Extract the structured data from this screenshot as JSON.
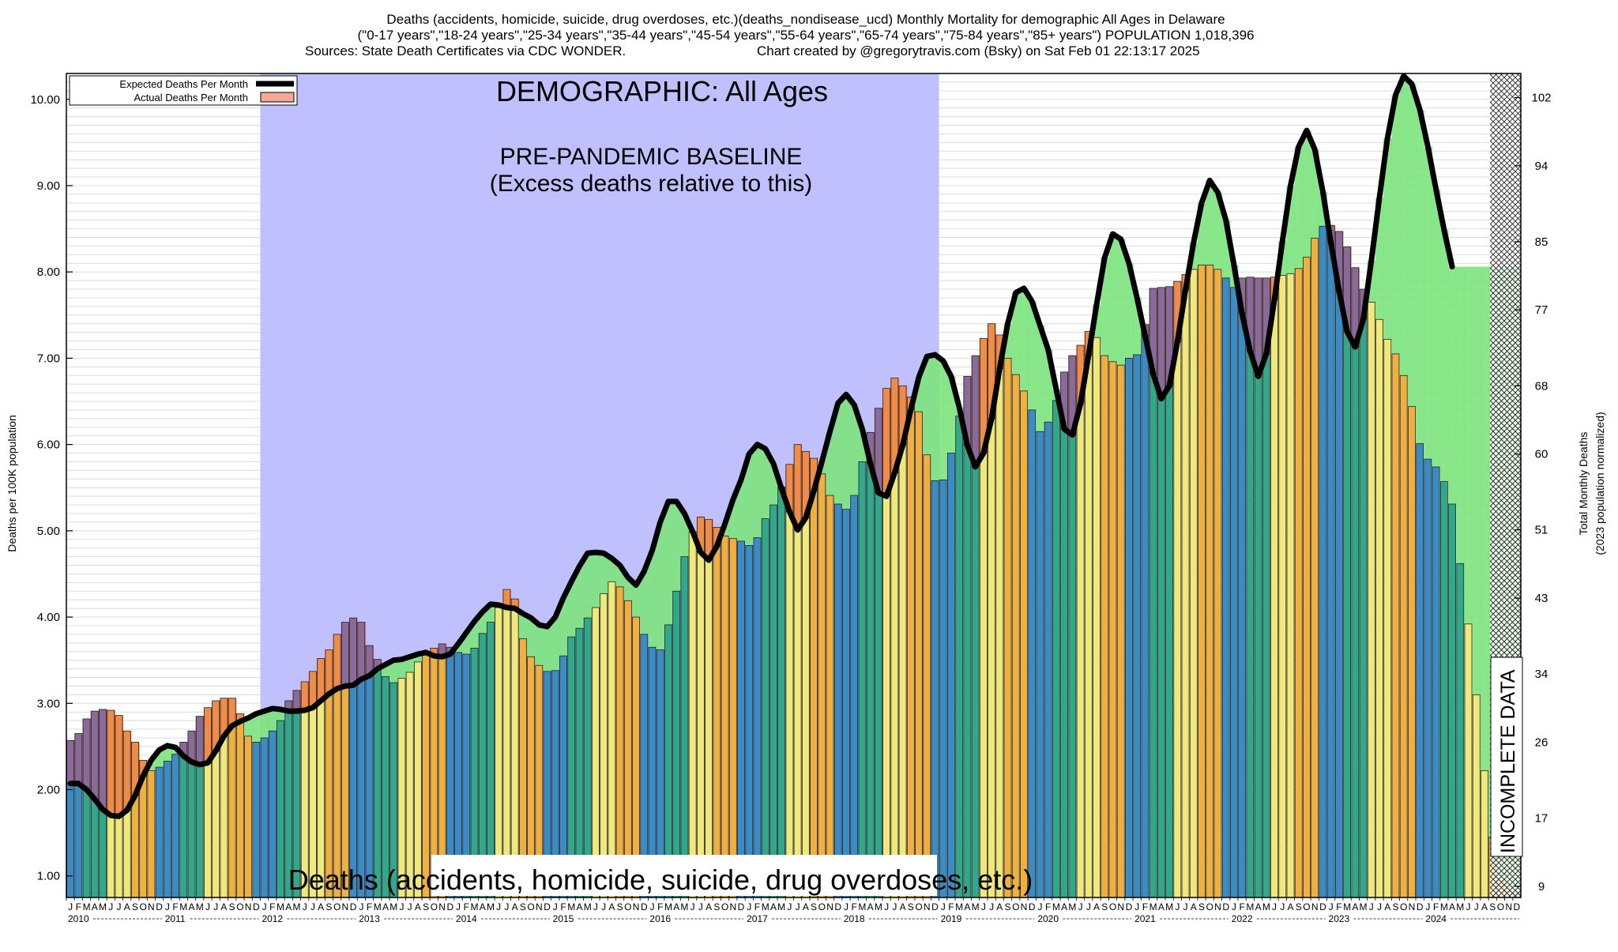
{
  "chart_data": {
    "type": "bar",
    "title_lines": [
      "Deaths (accidents, homicide, suicide, drug overdoses, etc.)(deaths_nondisease_ucd) Monthly Mortality for demographic All Ages in Delaware",
      "(\"0-17 years\",\"18-24 years\",\"25-34 years\",\"35-44 years\",\"45-54 years\",\"55-64 years\",\"65-74 years\",\"75-84 years\",\"85+ years\") POPULATION 1,018,396",
      "Sources: State Death Certificates via CDC WONDER.",
      "Chart created by @gregorytravis.com (Bsky) on Sat Feb 01 22:13:17 2025"
    ],
    "demographic_label": "DEMOGRAPHIC: All Ages",
    "baseline_label": "PRE-PANDEMIC BASELINE",
    "baseline_sublabel": "(Excess deaths relative to this)",
    "bottom_label": "Deaths (accidents, homicide, suicide, drug overdoses, etc.)",
    "incomplete_label": "INCOMPLETE DATA",
    "legend": [
      {
        "label": "Expected Deaths Per Month",
        "color": "#000000",
        "style": "line"
      },
      {
        "label": "Actual Deaths Per Month",
        "color": "#f4a896",
        "style": "box"
      }
    ],
    "ylabel_left": "Deaths per 100K population",
    "ylabel_right": [
      "Total Monthly Deaths",
      "(2023 population normalized)"
    ],
    "ylim": [
      0.75,
      10.3
    ],
    "yticks_left": [
      "1.00",
      "2.00",
      "3.00",
      "4.00",
      "5.00",
      "6.00",
      "7.00",
      "8.00",
      "9.00",
      "10.00"
    ],
    "yticks_right": [
      {
        "label": "9",
        "value": 0.88
      },
      {
        "label": "17",
        "value": 1.67
      },
      {
        "label": "26",
        "value": 2.55
      },
      {
        "label": "34",
        "value": 3.34
      },
      {
        "label": "43",
        "value": 4.22
      },
      {
        "label": "51",
        "value": 5.01
      },
      {
        "label": "60",
        "value": 5.89
      },
      {
        "label": "68",
        "value": 6.68
      },
      {
        "label": "77",
        "value": 7.56
      },
      {
        "label": "85",
        "value": 8.35
      },
      {
        "label": "94",
        "value": 9.23
      },
      {
        "label": "102",
        "value": 10.02
      }
    ],
    "years": [
      "2010",
      "2011",
      "2012",
      "2013",
      "2014",
      "2015",
      "2016",
      "2017",
      "2018",
      "2019",
      "2020",
      "2021",
      "2022",
      "2023",
      "2024"
    ],
    "month_letters": [
      "J",
      "F",
      "M",
      "A",
      "M",
      "J",
      "J",
      "A",
      "S",
      "O",
      "N",
      "D"
    ],
    "baseline_period": {
      "start_month_index": 24,
      "end_month_index": 107
    },
    "incomplete_start_month_index": 176,
    "season_colors": [
      "#3a8cc5",
      "#32a88a",
      "#f0e878",
      "#f0b040"
    ],
    "excess_colors": {
      "above": "#f08c4a",
      "below": "#7de37d",
      "mix": "#8a6a9a",
      "baseline_band": "#c0c0ff"
    },
    "actual_deaths_per_100k": [
      2.57,
      2.65,
      2.82,
      2.91,
      2.93,
      2.92,
      2.86,
      2.68,
      2.55,
      2.34,
      2.22,
      2.26,
      2.33,
      2.41,
      2.55,
      2.68,
      2.85,
      2.95,
      3.03,
      3.06,
      3.06,
      2.88,
      2.62,
      2.55,
      2.6,
      2.68,
      2.8,
      3.03,
      3.15,
      3.25,
      3.37,
      3.52,
      3.62,
      3.8,
      3.94,
      3.99,
      3.94,
      3.67,
      3.51,
      3.31,
      3.24,
      3.29,
      3.36,
      3.48,
      3.56,
      3.64,
      3.69,
      3.65,
      3.59,
      3.57,
      3.64,
      3.81,
      3.94,
      4.11,
      4.32,
      4.21,
      3.75,
      3.54,
      3.44,
      3.37,
      3.38,
      3.55,
      3.77,
      3.87,
      3.99,
      4.11,
      4.27,
      4.41,
      4.35,
      4.19,
      4.0,
      3.8,
      3.65,
      3.62,
      3.91,
      4.3,
      4.7,
      4.99,
      5.16,
      5.13,
      5.04,
      4.94,
      4.91,
      4.88,
      4.83,
      4.92,
      5.14,
      5.3,
      5.51,
      5.77,
      6.0,
      5.92,
      5.84,
      5.66,
      5.41,
      5.31,
      5.25,
      5.41,
      5.8,
      6.14,
      6.42,
      6.65,
      6.77,
      6.68,
      6.55,
      6.38,
      5.88,
      5.58,
      5.59,
      5.9,
      6.33,
      6.79,
      7.03,
      7.23,
      7.4,
      7.27,
      7.0,
      6.81,
      6.62,
      6.4,
      6.15,
      6.26,
      6.51,
      6.84,
      7.03,
      7.15,
      7.31,
      7.24,
      7.03,
      6.96,
      6.92,
      7.0,
      7.04,
      7.39,
      7.81,
      7.82,
      7.83,
      7.89,
      7.97,
      8.03,
      8.08,
      8.08,
      8.03,
      7.93,
      7.82,
      7.93,
      7.94,
      7.93,
      7.93,
      7.94,
      7.96,
      7.98,
      8.04,
      8.17,
      8.39,
      8.53,
      8.54,
      8.47,
      8.29,
      8.05,
      7.8,
      7.65,
      7.45,
      7.22,
      7.05,
      6.8,
      6.44,
      6.01,
      5.83,
      5.74,
      5.57,
      5.31,
      4.62,
      3.92,
      3.1,
      2.22,
      1.45,
      0.95,
      0.82,
      0.8
    ],
    "expected_deaths_per_100k": [
      2.07,
      2.07,
      2.0,
      1.89,
      1.77,
      1.7,
      1.69,
      1.76,
      1.93,
      2.16,
      2.34,
      2.46,
      2.51,
      2.49,
      2.39,
      2.32,
      2.29,
      2.31,
      2.45,
      2.62,
      2.74,
      2.79,
      2.83,
      2.88,
      2.91,
      2.94,
      2.93,
      2.91,
      2.91,
      2.92,
      2.95,
      3.03,
      3.11,
      3.17,
      3.2,
      3.21,
      3.28,
      3.32,
      3.4,
      3.45,
      3.5,
      3.51,
      3.54,
      3.57,
      3.59,
      3.55,
      3.54,
      3.57,
      3.69,
      3.82,
      3.95,
      4.06,
      4.15,
      4.14,
      4.11,
      4.1,
      4.04,
      3.99,
      3.91,
      3.89,
      4.0,
      4.22,
      4.41,
      4.59,
      4.74,
      4.75,
      4.74,
      4.68,
      4.6,
      4.46,
      4.37,
      4.53,
      4.77,
      5.1,
      5.34,
      5.34,
      5.2,
      4.99,
      4.75,
      4.66,
      4.82,
      5.08,
      5.36,
      5.59,
      5.89,
      6.0,
      5.95,
      5.78,
      5.49,
      5.22,
      5.01,
      5.15,
      5.46,
      5.8,
      6.15,
      6.48,
      6.58,
      6.46,
      6.18,
      5.78,
      5.44,
      5.4,
      5.67,
      5.99,
      6.4,
      6.78,
      7.02,
      7.04,
      6.97,
      6.79,
      6.43,
      5.99,
      5.74,
      5.9,
      6.3,
      6.88,
      7.4,
      7.76,
      7.81,
      7.66,
      7.38,
      7.1,
      6.64,
      6.18,
      6.11,
      6.47,
      7.03,
      7.62,
      8.17,
      8.44,
      8.38,
      8.1,
      7.7,
      7.26,
      6.82,
      6.53,
      6.68,
      7.19,
      7.79,
      8.34,
      8.8,
      9.06,
      8.92,
      8.6,
      8.08,
      7.52,
      7.08,
      6.79,
      7.05,
      7.68,
      8.36,
      9.0,
      9.45,
      9.64,
      9.42,
      8.93,
      8.34,
      7.78,
      7.31,
      7.13,
      7.45,
      8.13,
      8.86,
      9.55,
      10.05,
      10.27,
      10.18,
      9.88,
      9.45,
      8.96,
      8.49,
      8.06
    ]
  }
}
